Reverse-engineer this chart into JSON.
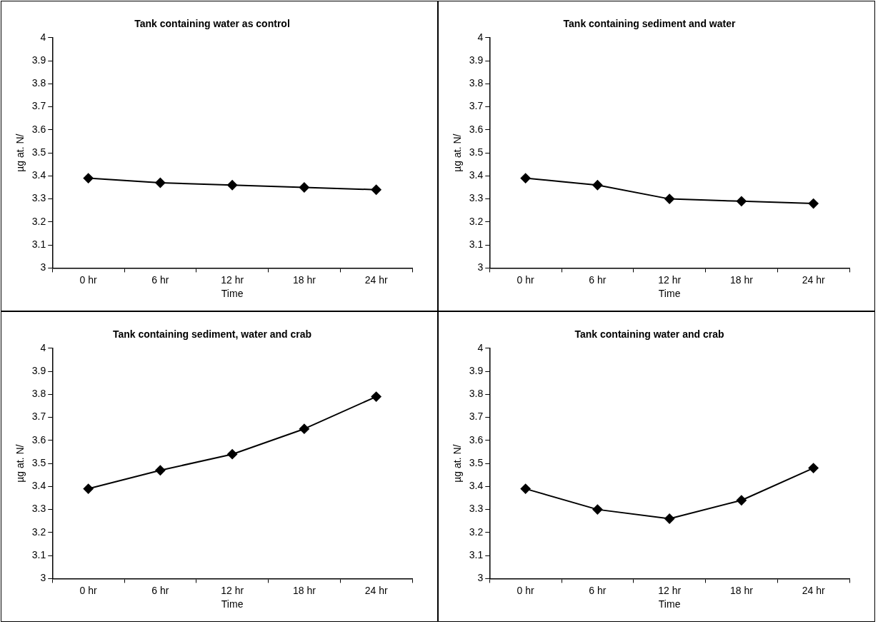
{
  "chart_data": [
    {
      "type": "line",
      "title": "Tank containing water as control",
      "xlabel": "Time",
      "ylabel": "µg at. N/",
      "categories": [
        "0 hr",
        "6 hr",
        "12 hr",
        "18 hr",
        "24 hr"
      ],
      "series": [
        {
          "color": "#000000",
          "values": [
            3.39,
            3.37,
            3.36,
            3.35,
            3.34
          ]
        }
      ],
      "ylim": [
        3,
        4
      ],
      "yticks": [
        3,
        3.1,
        3.2,
        3.3,
        3.4,
        3.5,
        3.6,
        3.7,
        3.8,
        3.9,
        4
      ],
      "grid": false,
      "legend": false,
      "marker": "diamond",
      "line_style": "solid"
    },
    {
      "type": "line",
      "title": "Tank containing sediment and water",
      "xlabel": "Time",
      "ylabel": "µg at. N/",
      "categories": [
        "0 hr",
        "6 hr",
        "12 hr",
        "18 hr",
        "24 hr"
      ],
      "series": [
        {
          "color": "#000000",
          "values": [
            3.39,
            3.36,
            3.3,
            3.29,
            3.28
          ]
        }
      ],
      "ylim": [
        3,
        4
      ],
      "yticks": [
        3,
        3.1,
        3.2,
        3.3,
        3.4,
        3.5,
        3.6,
        3.7,
        3.8,
        3.9,
        4
      ],
      "grid": false,
      "legend": false,
      "marker": "diamond",
      "line_style": "solid"
    },
    {
      "type": "line",
      "title": "Tank containing sediment, water and crab",
      "xlabel": "Time",
      "ylabel": "µg at. N/",
      "categories": [
        "0 hr",
        "6 hr",
        "12 hr",
        "18 hr",
        "24 hr"
      ],
      "series": [
        {
          "color": "#000000",
          "values": [
            3.39,
            3.47,
            3.54,
            3.65,
            3.79
          ]
        }
      ],
      "ylim": [
        3,
        4
      ],
      "yticks": [
        3,
        3.1,
        3.2,
        3.3,
        3.4,
        3.5,
        3.6,
        3.7,
        3.8,
        3.9,
        4
      ],
      "grid": false,
      "legend": false,
      "marker": "diamond",
      "line_style": "solid"
    },
    {
      "type": "line",
      "title": "Tank containing water and crab",
      "xlabel": "Time",
      "ylabel": "µg at. N/",
      "categories": [
        "0 hr",
        "6 hr",
        "12 hr",
        "18 hr",
        "24 hr"
      ],
      "series": [
        {
          "color": "#000000",
          "values": [
            3.39,
            3.3,
            3.26,
            3.34,
            3.48
          ]
        }
      ],
      "ylim": [
        3,
        4
      ],
      "yticks": [
        3,
        3.1,
        3.2,
        3.3,
        3.4,
        3.5,
        3.6,
        3.7,
        3.8,
        3.9,
        4
      ],
      "grid": false,
      "legend": false,
      "marker": "diamond",
      "line_style": "solid"
    }
  ]
}
